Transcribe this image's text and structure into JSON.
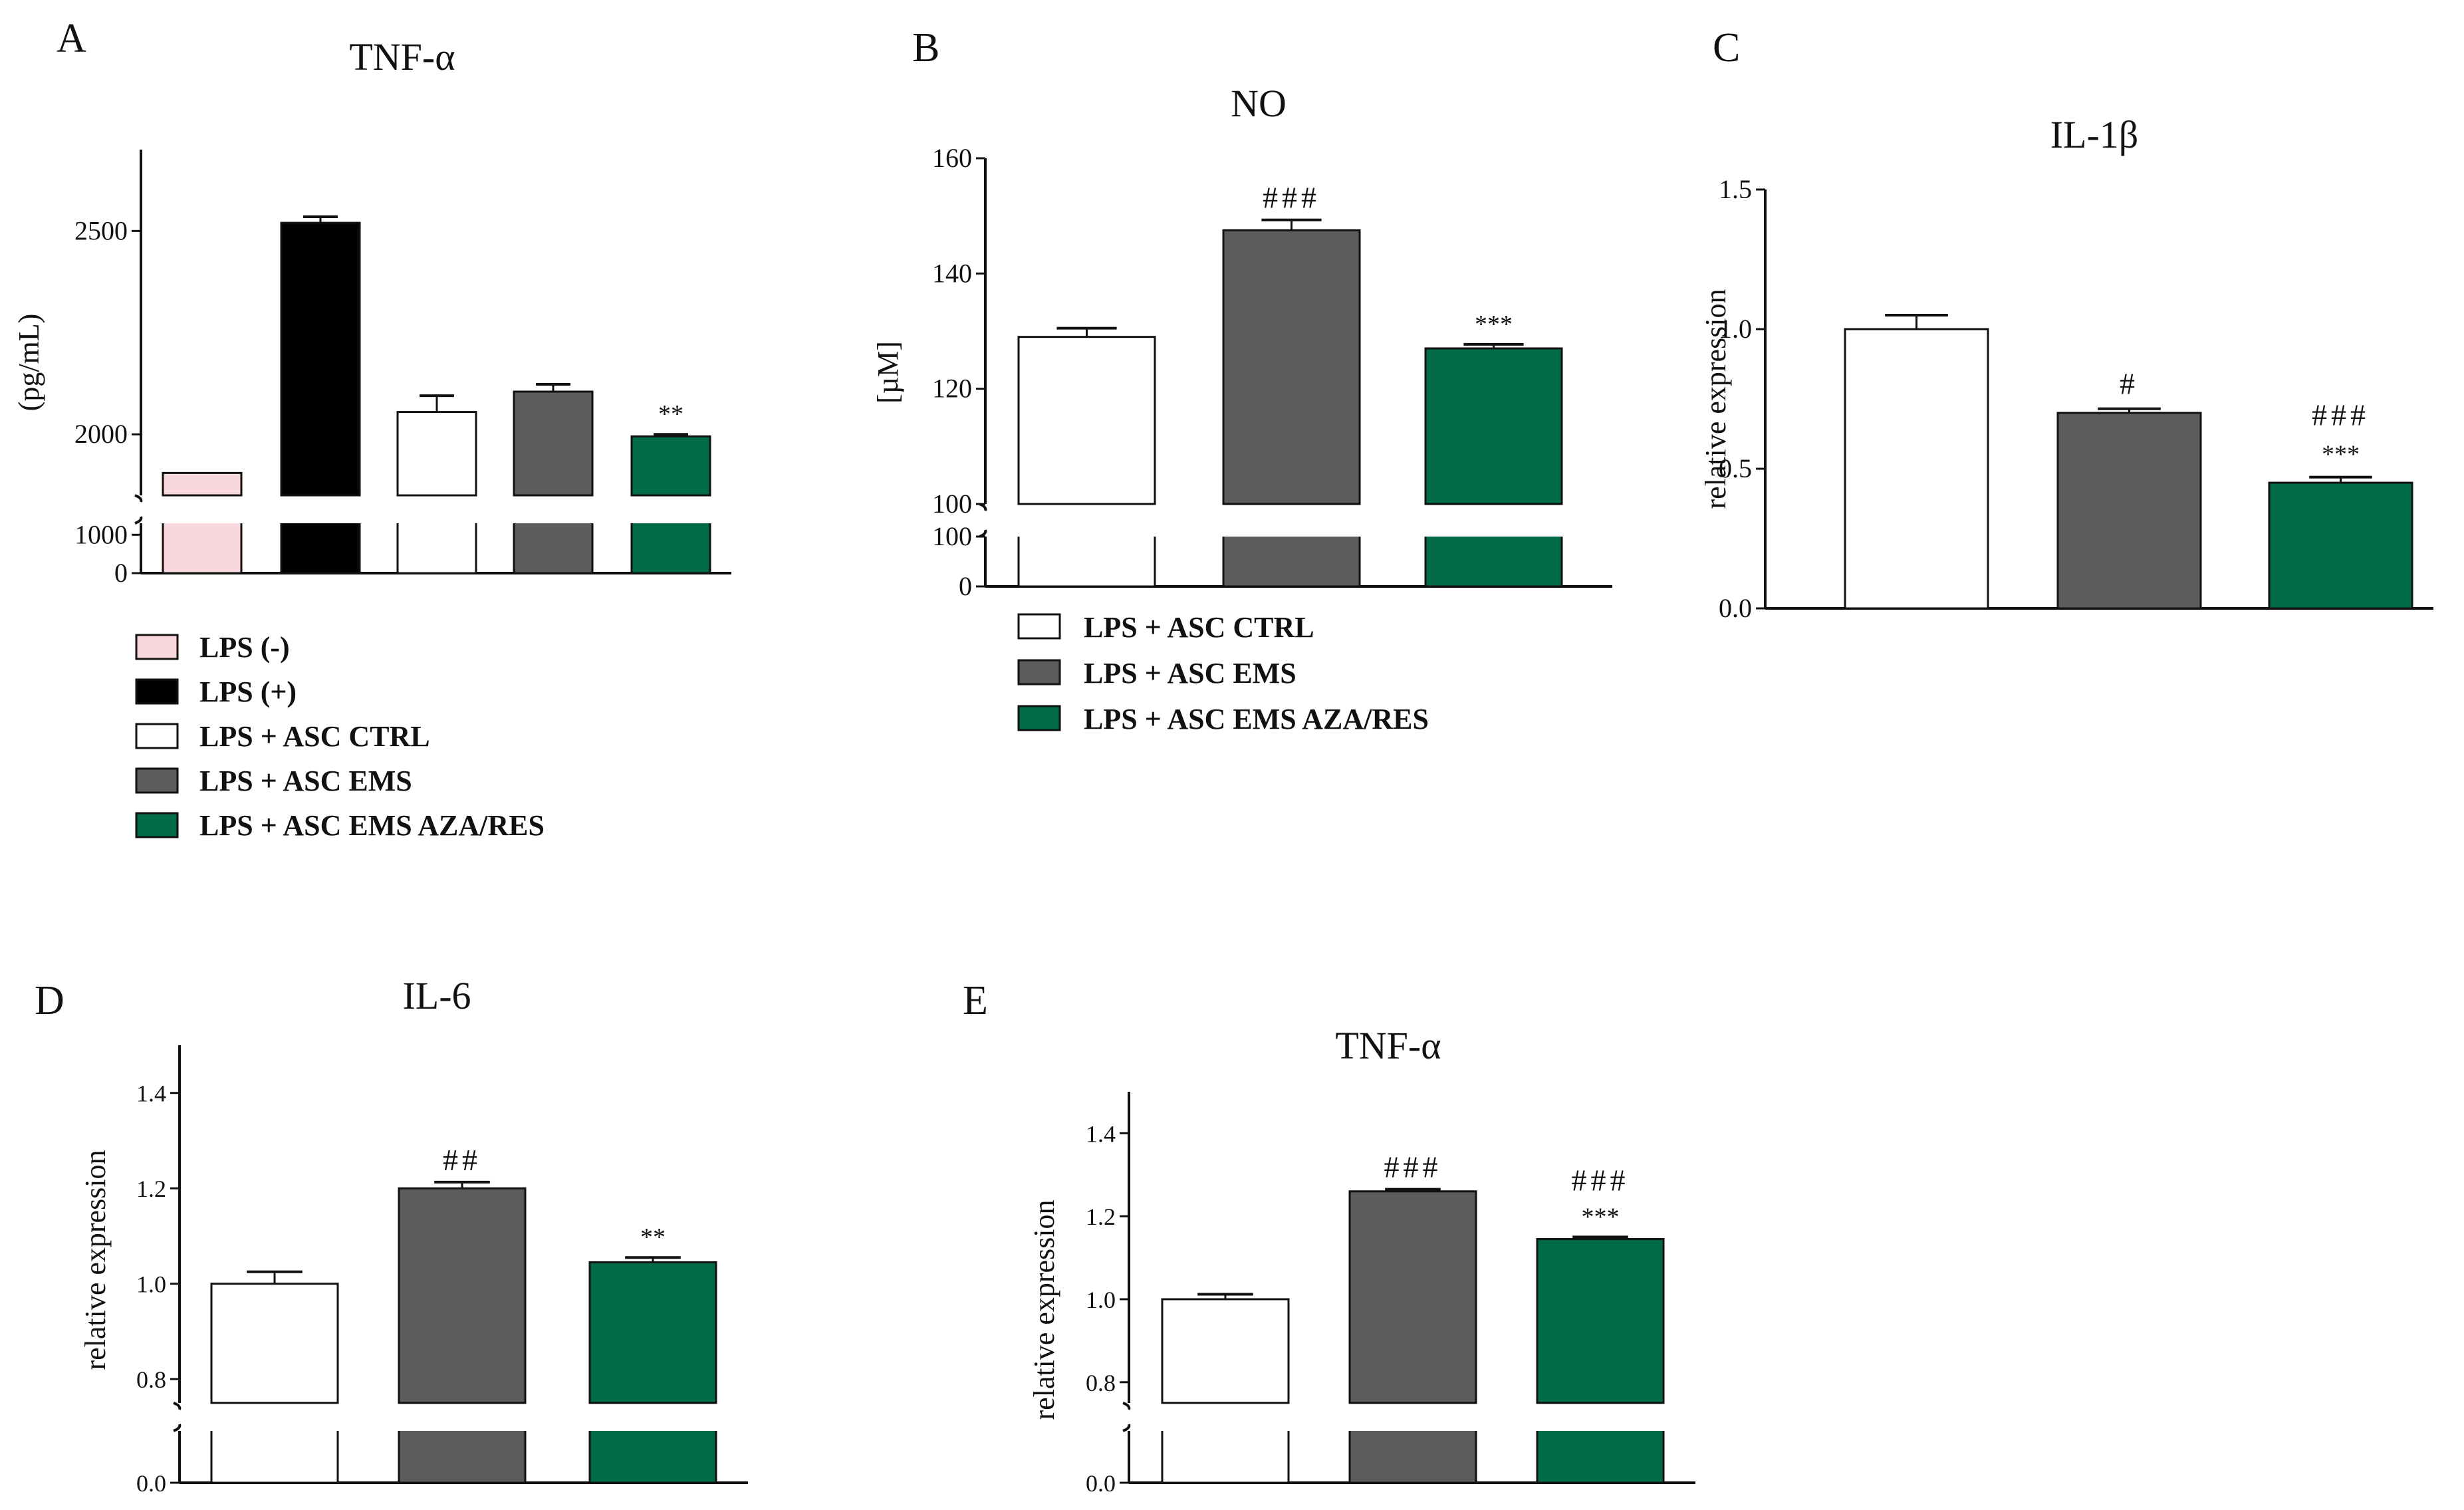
{
  "colors": {
    "lps_neg": "#f8d8dc",
    "lps_pos": "#000000",
    "ctrl": "#ffffff",
    "ems": "#5c5c5c",
    "aza": "#006b46",
    "outline": "#111111"
  },
  "legend_a": {
    "entries": [
      {
        "label": "LPS (-)",
        "color_key": "lps_neg"
      },
      {
        "label": "LPS (+)",
        "color_key": "lps_pos"
      },
      {
        "label": "LPS + ASC CTRL",
        "color_key": "ctrl"
      },
      {
        "label": "LPS + ASC EMS",
        "color_key": "ems"
      },
      {
        "label": "LPS + ASC EMS AZA/RES",
        "color_key": "aza"
      }
    ]
  },
  "legend_b": {
    "entries": [
      {
        "label": "LPS + ASC CTRL",
        "color_key": "ctrl"
      },
      {
        "label": "LPS + ASC EMS",
        "color_key": "ems"
      },
      {
        "label": "LPS + ASC EMS AZA/RES",
        "color_key": "aza"
      }
    ]
  },
  "chart_data": [
    {
      "panel": "A",
      "type": "bar",
      "title": "TNF-α",
      "ylabel": "(pg/mL)",
      "categories": [
        "LPS (-)",
        "LPS (+)",
        "LPS + ASC CTRL",
        "LPS + ASC EMS",
        "LPS + ASC EMS AZA/RES"
      ],
      "values": [
        1905,
        2520,
        2055,
        2105,
        1995
      ],
      "errors": [
        0,
        15,
        40,
        18,
        5
      ],
      "annotations": [
        "",
        "",
        "",
        "",
        "**"
      ],
      "ylim_upper": [
        1850,
        2700
      ],
      "ylim_lower": [
        0,
        1300
      ],
      "yticks_upper": [
        2000,
        2500
      ],
      "yticks_lower": [
        0,
        1000
      ]
    },
    {
      "panel": "B",
      "type": "bar",
      "title": "NO",
      "ylabel": "[µM]",
      "categories": [
        "LPS + ASC CTRL",
        "LPS + ASC EMS",
        "LPS + ASC EMS AZA/RES"
      ],
      "values": [
        129,
        147.5,
        127
      ],
      "errors": [
        1.5,
        1.8,
        0.7
      ],
      "annotations": [
        "",
        "###",
        "***"
      ],
      "ylim_upper": [
        100,
        160
      ],
      "ylim_lower": [
        0,
        100
      ],
      "yticks_upper": [
        100,
        120,
        140,
        160
      ],
      "yticks_lower": [
        0,
        100
      ]
    },
    {
      "panel": "C",
      "type": "bar",
      "title": "IL-1β",
      "ylabel": "relative expression",
      "categories": [
        "LPS + ASC CTRL",
        "LPS + ASC EMS",
        "LPS + ASC EMS AZA/RES"
      ],
      "values": [
        1.0,
        0.7,
        0.45
      ],
      "errors": [
        0.05,
        0.015,
        0.02
      ],
      "annotations": [
        [],
        [
          "#"
        ],
        [
          "###",
          "***"
        ]
      ],
      "ylim": [
        0,
        1.5
      ],
      "yticks": [
        "0.0",
        "0.5",
        "1.0",
        "1.5"
      ]
    },
    {
      "panel": "D",
      "type": "bar",
      "title": "IL-6",
      "ylabel": "relative expression",
      "categories": [
        "LPS + ASC CTRL",
        "LPS + ASC EMS",
        "LPS + ASC EMS AZA/RES"
      ],
      "values": [
        1.0,
        1.2,
        1.045
      ],
      "errors": [
        0.025,
        0.013,
        0.01
      ],
      "annotations": [
        [],
        [
          "##"
        ],
        [
          "**"
        ]
      ],
      "ylim_upper": [
        0.75,
        1.5
      ],
      "ylim_lower": [
        0,
        0.1
      ],
      "yticks_upper": [
        "0.8",
        "1.0",
        "1.2",
        "1.4"
      ],
      "yticks_lower": [
        "0.0"
      ]
    },
    {
      "panel": "E",
      "type": "bar",
      "title": "TNF-α",
      "ylabel": "relative expression",
      "categories": [
        "LPS + ASC CTRL",
        "LPS + ASC EMS",
        "LPS + ASC EMS AZA/RES"
      ],
      "values": [
        1.0,
        1.26,
        1.145
      ],
      "errors": [
        0.012,
        0.005,
        0.005
      ],
      "annotations": [
        [],
        [
          "###"
        ],
        [
          "###",
          "***"
        ]
      ],
      "ylim_upper": [
        0.75,
        1.5
      ],
      "ylim_lower": [
        0,
        0.1
      ],
      "yticks_upper": [
        "0.8",
        "1.0",
        "1.2",
        "1.4"
      ],
      "yticks_lower": [
        "0.0"
      ]
    }
  ]
}
